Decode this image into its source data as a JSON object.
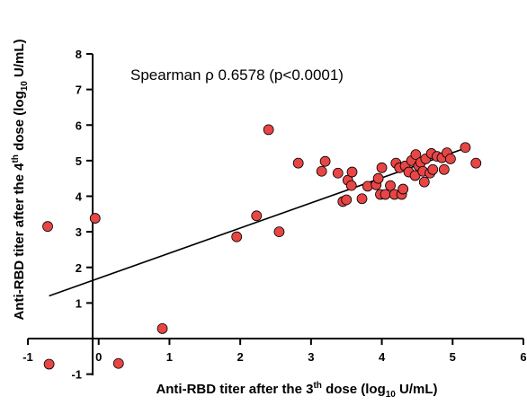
{
  "chart_data": {
    "type": "scatter",
    "annotation": "Spearman ρ 0.6578 (p<0.0001)",
    "xlabel": {
      "pre": "Anti-RBD titer after the 3",
      "sup": "th",
      "mid": " dose (log",
      "sub": "10",
      "post": " U/mL)"
    },
    "ylabel": {
      "pre": "Anti-RBD titer after the 4",
      "sup": "th",
      "mid": " dose (log",
      "sub": "10",
      "post": " U/mL)"
    },
    "xlim": [
      -1,
      6
    ],
    "ylim": [
      -1,
      8
    ],
    "xticks": [
      -1,
      0,
      1,
      2,
      3,
      4,
      5,
      6
    ],
    "yticks": [
      -1,
      1,
      2,
      3,
      4,
      5,
      6,
      7,
      8
    ],
    "grid": false,
    "marker_color": "#e84545",
    "marker_edge": "#000000",
    "trend_line": {
      "x": [
        -0.7,
        5.25
      ],
      "y": [
        1.2,
        5.4
      ]
    },
    "points": [
      {
        "x": -0.72,
        "y": 3.15
      },
      {
        "x": -0.7,
        "y": -0.72
      },
      {
        "x": -0.05,
        "y": 3.38
      },
      {
        "x": 0.28,
        "y": -0.7
      },
      {
        "x": 0.9,
        "y": 0.28
      },
      {
        "x": 1.95,
        "y": 2.86
      },
      {
        "x": 2.23,
        "y": 3.45
      },
      {
        "x": 2.4,
        "y": 5.87
      },
      {
        "x": 2.55,
        "y": 3.0
      },
      {
        "x": 2.82,
        "y": 4.93
      },
      {
        "x": 3.15,
        "y": 4.7
      },
      {
        "x": 3.2,
        "y": 4.98
      },
      {
        "x": 3.38,
        "y": 4.65
      },
      {
        "x": 3.45,
        "y": 3.85
      },
      {
        "x": 3.5,
        "y": 3.9
      },
      {
        "x": 3.52,
        "y": 4.45
      },
      {
        "x": 3.57,
        "y": 4.3
      },
      {
        "x": 3.58,
        "y": 4.68
      },
      {
        "x": 3.72,
        "y": 3.93
      },
      {
        "x": 3.8,
        "y": 4.28
      },
      {
        "x": 3.92,
        "y": 4.32
      },
      {
        "x": 3.95,
        "y": 4.5
      },
      {
        "x": 3.98,
        "y": 4.05
      },
      {
        "x": 4.0,
        "y": 4.8
      },
      {
        "x": 4.05,
        "y": 4.05
      },
      {
        "x": 4.12,
        "y": 4.3
      },
      {
        "x": 4.18,
        "y": 4.05
      },
      {
        "x": 4.2,
        "y": 4.93
      },
      {
        "x": 4.25,
        "y": 4.8
      },
      {
        "x": 4.28,
        "y": 4.05
      },
      {
        "x": 4.3,
        "y": 4.2
      },
      {
        "x": 4.33,
        "y": 4.85
      },
      {
        "x": 4.38,
        "y": 4.68
      },
      {
        "x": 4.42,
        "y": 5.0
      },
      {
        "x": 4.47,
        "y": 4.58
      },
      {
        "x": 4.48,
        "y": 5.17
      },
      {
        "x": 4.52,
        "y": 4.85
      },
      {
        "x": 4.55,
        "y": 4.95
      },
      {
        "x": 4.58,
        "y": 4.7
      },
      {
        "x": 4.6,
        "y": 4.4
      },
      {
        "x": 4.62,
        "y": 5.05
      },
      {
        "x": 4.68,
        "y": 4.65
      },
      {
        "x": 4.7,
        "y": 5.2
      },
      {
        "x": 4.72,
        "y": 4.75
      },
      {
        "x": 4.78,
        "y": 5.12
      },
      {
        "x": 4.85,
        "y": 5.08
      },
      {
        "x": 4.88,
        "y": 4.75
      },
      {
        "x": 4.92,
        "y": 5.22
      },
      {
        "x": 4.97,
        "y": 5.05
      },
      {
        "x": 5.18,
        "y": 5.37
      },
      {
        "x": 5.33,
        "y": 4.93
      }
    ]
  }
}
